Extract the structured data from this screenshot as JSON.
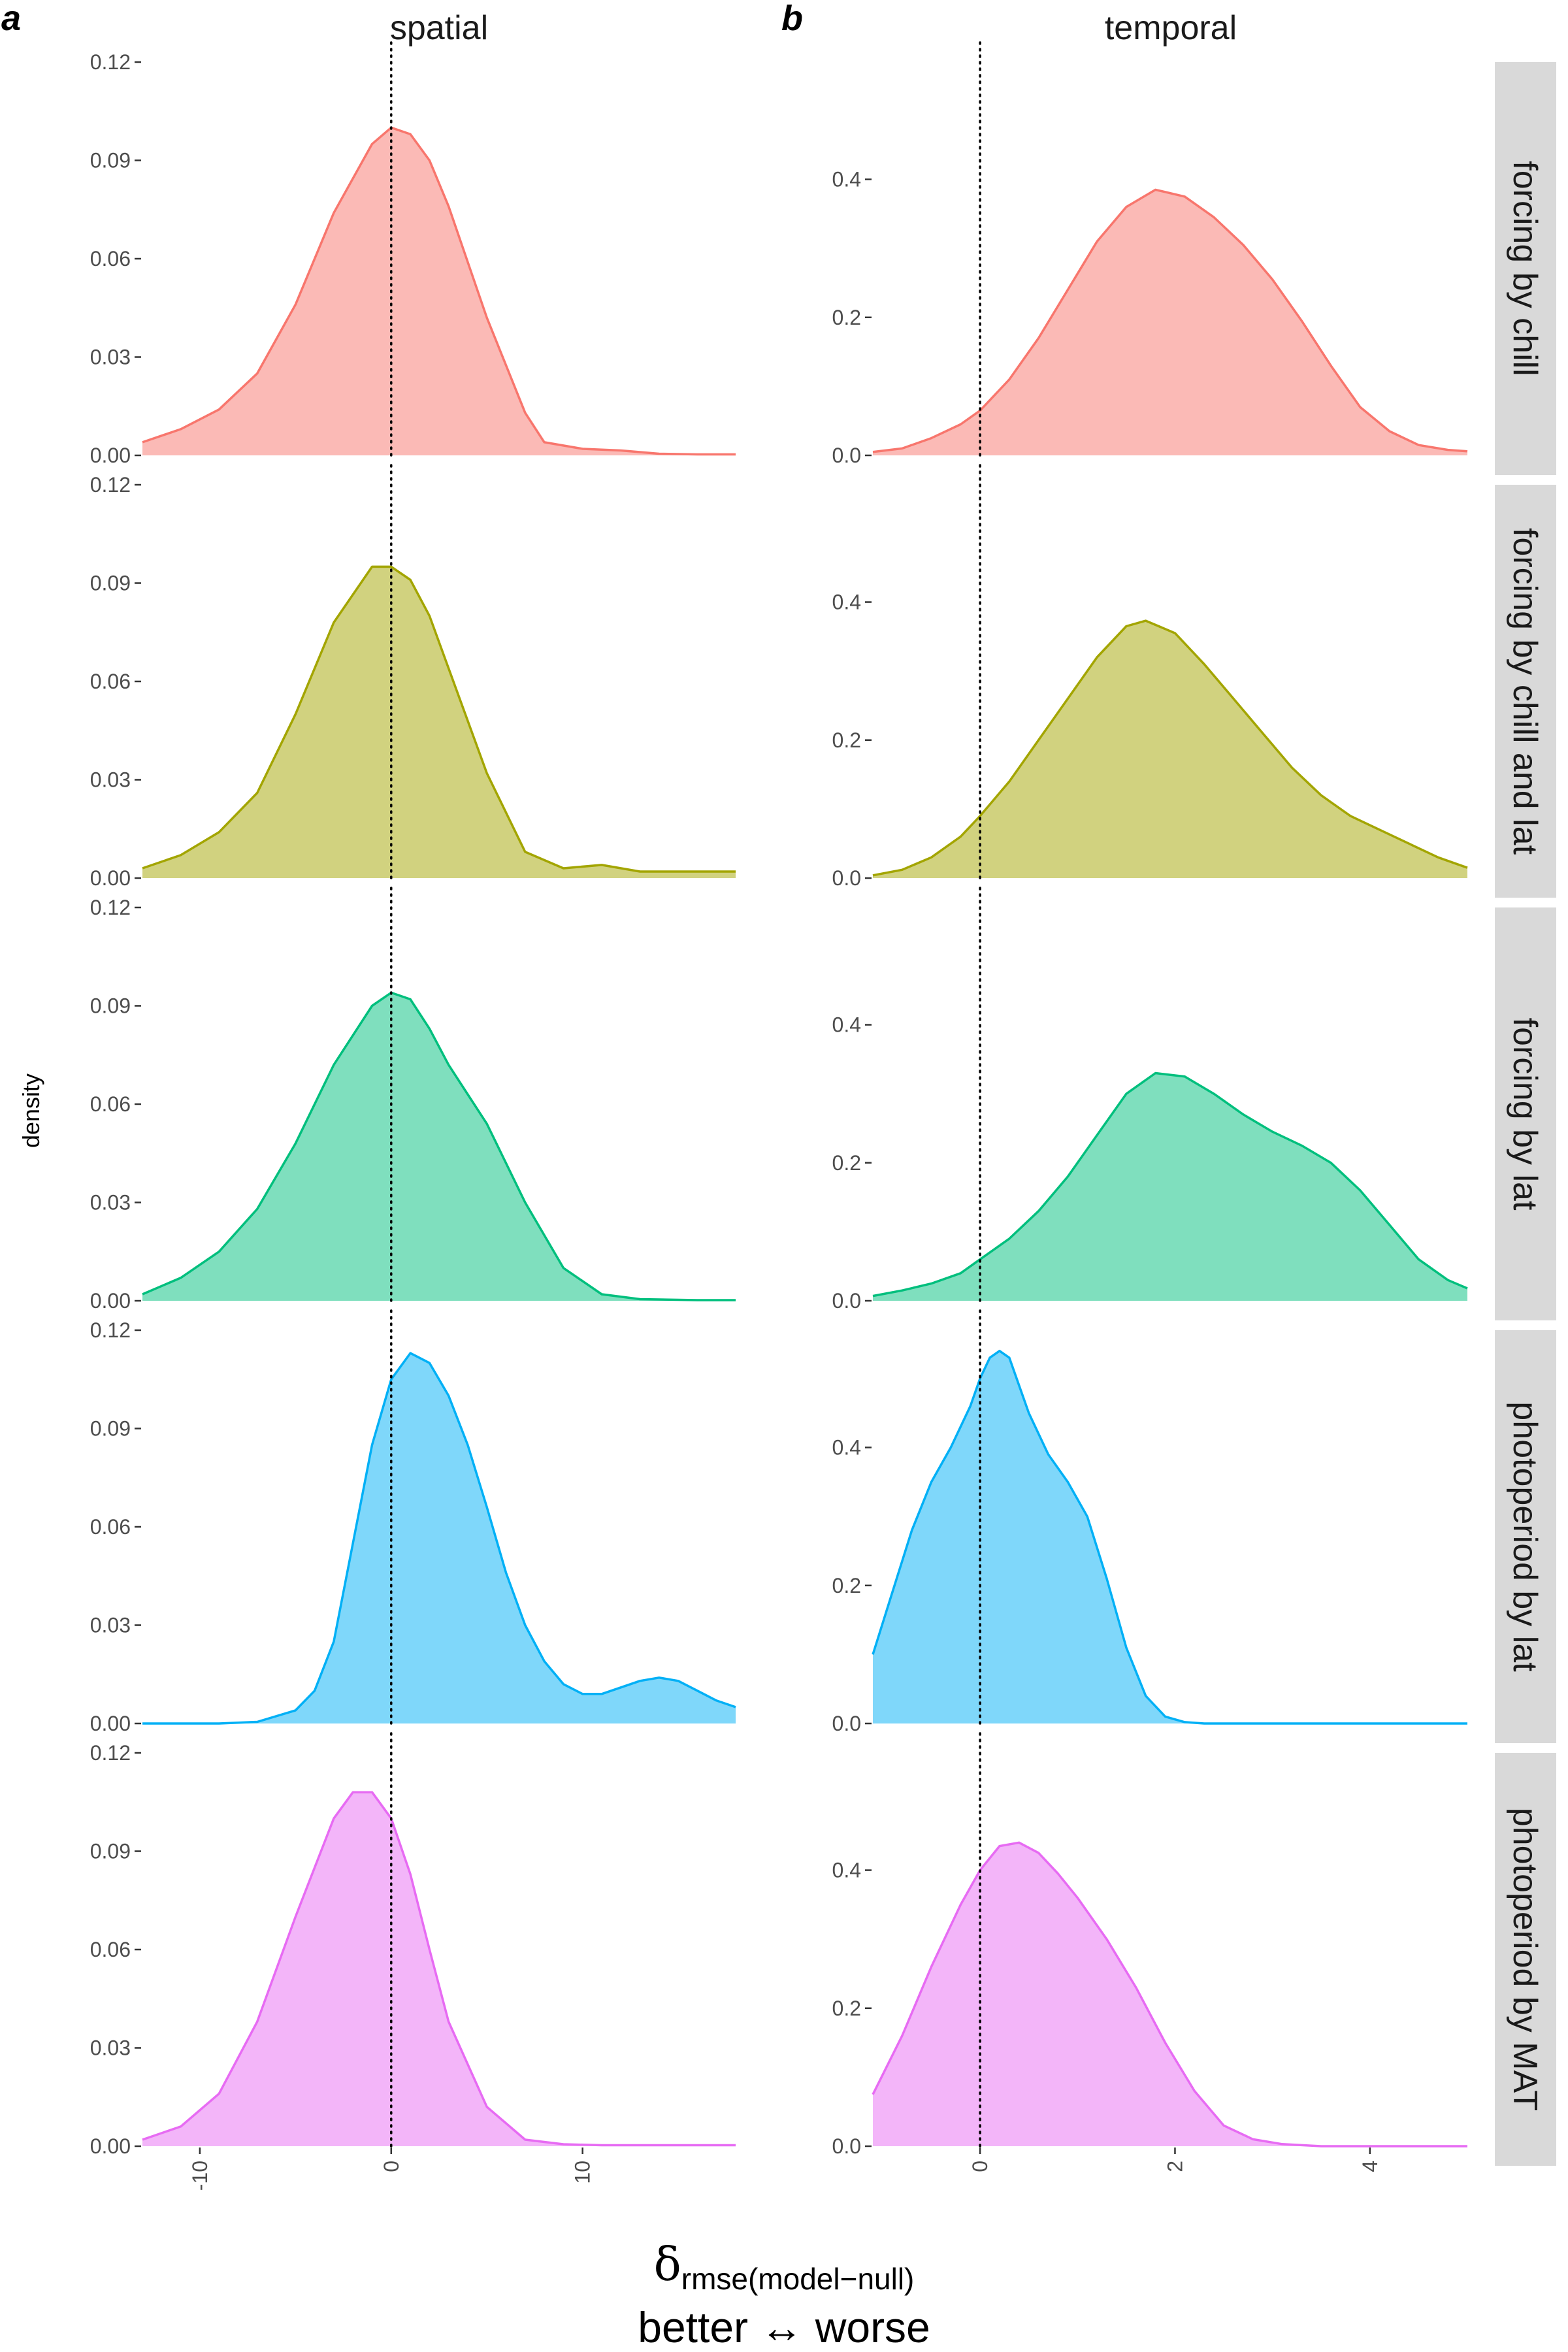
{
  "labels": {
    "panel_a": "a",
    "panel_b": "b",
    "col_spatial": "spatial",
    "col_temporal": "temporal",
    "ylabel": "density",
    "xlabel_delta": "δ",
    "xlabel_sub": "rmse(model−null)",
    "xlabel_line2": "better ↔ worse"
  },
  "colors": {
    "forcing by chill": {
      "line": "#F8766D",
      "fill": "#F8766D"
    },
    "forcing by chill and lat": {
      "line": "#A3A500",
      "fill": "#A3A500"
    },
    "forcing by lat": {
      "line": "#00BF7D",
      "fill": "#00BF7D"
    },
    "photoperiod by lat": {
      "line": "#00B0F6",
      "fill": "#00B0F6"
    },
    "photoperiod by MAT": {
      "line": "#E76BF3",
      "fill": "#E76BF3"
    },
    "strip_bg": "#D9D9D9",
    "fill_opacity": 0.5
  },
  "chart_data": {
    "type": "area",
    "rows": [
      "forcing by chill",
      "forcing by chill and lat",
      "forcing by lat",
      "photoperiod by lat",
      "photoperiod by MAT"
    ],
    "columns": [
      {
        "name": "spatial",
        "xlim": [
          -13,
          18
        ],
        "ylim": [
          0,
          0.12
        ],
        "xticks": [
          -10,
          0,
          10
        ],
        "xtick_labels": [
          "-10",
          "0",
          "10"
        ],
        "yticks": [
          0,
          0.03,
          0.06,
          0.09,
          0.12
        ],
        "ytick_labels": [
          "0.00",
          "0.03",
          "0.06",
          "0.09",
          "0.12"
        ],
        "vline": 0,
        "series": [
          {
            "name": "forcing by chill",
            "x": [
              -13,
              -11,
              -9,
              -7,
              -5,
              -3,
              -1,
              0,
              1,
              2,
              3,
              5,
              7,
              8,
              10,
              12,
              14,
              16,
              18
            ],
            "y": [
              0.004,
              0.008,
              0.014,
              0.025,
              0.046,
              0.074,
              0.095,
              0.1,
              0.098,
              0.09,
              0.076,
              0.042,
              0.013,
              0.004,
              0.002,
              0.0015,
              0.0005,
              0.0003,
              0.0003
            ]
          },
          {
            "name": "forcing by chill and lat",
            "x": [
              -13,
              -11,
              -9,
              -7,
              -5,
              -3,
              -1,
              0,
              1,
              2,
              3,
              5,
              7,
              9,
              11,
              13,
              15,
              18
            ],
            "y": [
              0.003,
              0.007,
              0.014,
              0.026,
              0.05,
              0.078,
              0.095,
              0.095,
              0.091,
              0.08,
              0.064,
              0.032,
              0.008,
              0.003,
              0.004,
              0.002,
              0.002,
              0.002
            ]
          },
          {
            "name": "forcing by lat",
            "x": [
              -13,
              -11,
              -9,
              -7,
              -5,
              -3,
              -1,
              0,
              1,
              2,
              3,
              4,
              5,
              7,
              9,
              11,
              13,
              16,
              18
            ],
            "y": [
              0.002,
              0.007,
              0.015,
              0.028,
              0.048,
              0.072,
              0.09,
              0.094,
              0.092,
              0.083,
              0.072,
              0.063,
              0.054,
              0.03,
              0.01,
              0.002,
              0.0005,
              0.0002,
              0.0002
            ]
          },
          {
            "name": "photoperiod by lat",
            "x": [
              -13,
              -9,
              -7,
              -5,
              -4,
              -3,
              -2,
              -1,
              0,
              1,
              2,
              3,
              4,
              5,
              6,
              7,
              8,
              9,
              10,
              11,
              12,
              13,
              14,
              15,
              16,
              17,
              18
            ],
            "y": [
              0,
              0,
              0.0005,
              0.004,
              0.01,
              0.025,
              0.055,
              0.085,
              0.105,
              0.113,
              0.11,
              0.1,
              0.085,
              0.066,
              0.046,
              0.03,
              0.019,
              0.012,
              0.009,
              0.009,
              0.011,
              0.013,
              0.014,
              0.013,
              0.01,
              0.007,
              0.005
            ]
          },
          {
            "name": "photoperiod by MAT",
            "x": [
              -13,
              -11,
              -9,
              -7,
              -5,
              -3,
              -2,
              -1,
              0,
              1,
              2,
              3,
              5,
              7,
              9,
              11,
              13,
              15,
              18
            ],
            "y": [
              0.002,
              0.006,
              0.016,
              0.038,
              0.07,
              0.1,
              0.108,
              0.108,
              0.1,
              0.083,
              0.06,
              0.038,
              0.012,
              0.002,
              0.0006,
              0.0003,
              0.0003,
              0.0003,
              0.0003
            ]
          }
        ]
      },
      {
        "name": "temporal",
        "xlim": [
          -1.1,
          5
        ],
        "ylim": [
          0,
          0.57
        ],
        "xticks": [
          0,
          2,
          4
        ],
        "xtick_labels": [
          "0",
          "2",
          "4"
        ],
        "yticks": [
          0,
          0.2,
          0.4
        ],
        "ytick_labels": [
          "0.0",
          "0.2",
          "0.4"
        ],
        "vline": 0,
        "series": [
          {
            "name": "forcing by chill",
            "x": [
              -1.1,
              -0.8,
              -0.5,
              -0.2,
              0,
              0.3,
              0.6,
              0.9,
              1.2,
              1.5,
              1.8,
              2.1,
              2.4,
              2.7,
              3.0,
              3.3,
              3.6,
              3.9,
              4.2,
              4.5,
              4.8,
              5.0
            ],
            "y": [
              0.005,
              0.01,
              0.025,
              0.045,
              0.065,
              0.11,
              0.17,
              0.24,
              0.31,
              0.36,
              0.385,
              0.375,
              0.345,
              0.305,
              0.255,
              0.195,
              0.13,
              0.07,
              0.035,
              0.015,
              0.008,
              0.006
            ]
          },
          {
            "name": "forcing by chill and lat",
            "x": [
              -1.1,
              -0.8,
              -0.5,
              -0.2,
              0,
              0.3,
              0.6,
              0.9,
              1.2,
              1.5,
              1.7,
              2.0,
              2.3,
              2.6,
              2.9,
              3.2,
              3.5,
              3.8,
              4.1,
              4.4,
              4.7,
              5.0
            ],
            "y": [
              0.004,
              0.012,
              0.03,
              0.06,
              0.09,
              0.14,
              0.2,
              0.26,
              0.32,
              0.365,
              0.373,
              0.355,
              0.31,
              0.26,
              0.21,
              0.16,
              0.12,
              0.09,
              0.07,
              0.05,
              0.03,
              0.015
            ]
          },
          {
            "name": "forcing by lat",
            "x": [
              -1.1,
              -0.8,
              -0.5,
              -0.2,
              0,
              0.3,
              0.6,
              0.9,
              1.2,
              1.5,
              1.8,
              2.1,
              2.4,
              2.7,
              3.0,
              3.3,
              3.6,
              3.9,
              4.2,
              4.5,
              4.8,
              5.0
            ],
            "y": [
              0.007,
              0.015,
              0.025,
              0.04,
              0.06,
              0.09,
              0.13,
              0.18,
              0.24,
              0.3,
              0.33,
              0.325,
              0.3,
              0.27,
              0.245,
              0.225,
              0.2,
              0.16,
              0.11,
              0.06,
              0.03,
              0.018
            ]
          },
          {
            "name": "photoperiod by lat",
            "x": [
              -1.1,
              -0.9,
              -0.7,
              -0.5,
              -0.3,
              -0.1,
              0,
              0.1,
              0.2,
              0.3,
              0.4,
              0.5,
              0.7,
              0.9,
              1.1,
              1.3,
              1.5,
              1.7,
              1.9,
              2.1,
              2.3,
              2.6,
              3.0,
              5.0
            ],
            "y": [
              0.1,
              0.19,
              0.28,
              0.35,
              0.4,
              0.46,
              0.5,
              0.53,
              0.54,
              0.53,
              0.49,
              0.45,
              0.39,
              0.35,
              0.3,
              0.21,
              0.11,
              0.04,
              0.01,
              0.002,
              0,
              0,
              0,
              0
            ]
          },
          {
            "name": "photoperiod by MAT",
            "x": [
              -1.1,
              -0.8,
              -0.5,
              -0.2,
              0,
              0.2,
              0.4,
              0.6,
              0.8,
              1.0,
              1.3,
              1.6,
              1.9,
              2.2,
              2.5,
              2.8,
              3.1,
              3.5,
              4.0,
              5.0
            ],
            "y": [
              0.075,
              0.16,
              0.26,
              0.35,
              0.4,
              0.435,
              0.44,
              0.425,
              0.395,
              0.36,
              0.3,
              0.23,
              0.15,
              0.08,
              0.03,
              0.01,
              0.003,
              0,
              0,
              0
            ]
          }
        ]
      }
    ]
  }
}
